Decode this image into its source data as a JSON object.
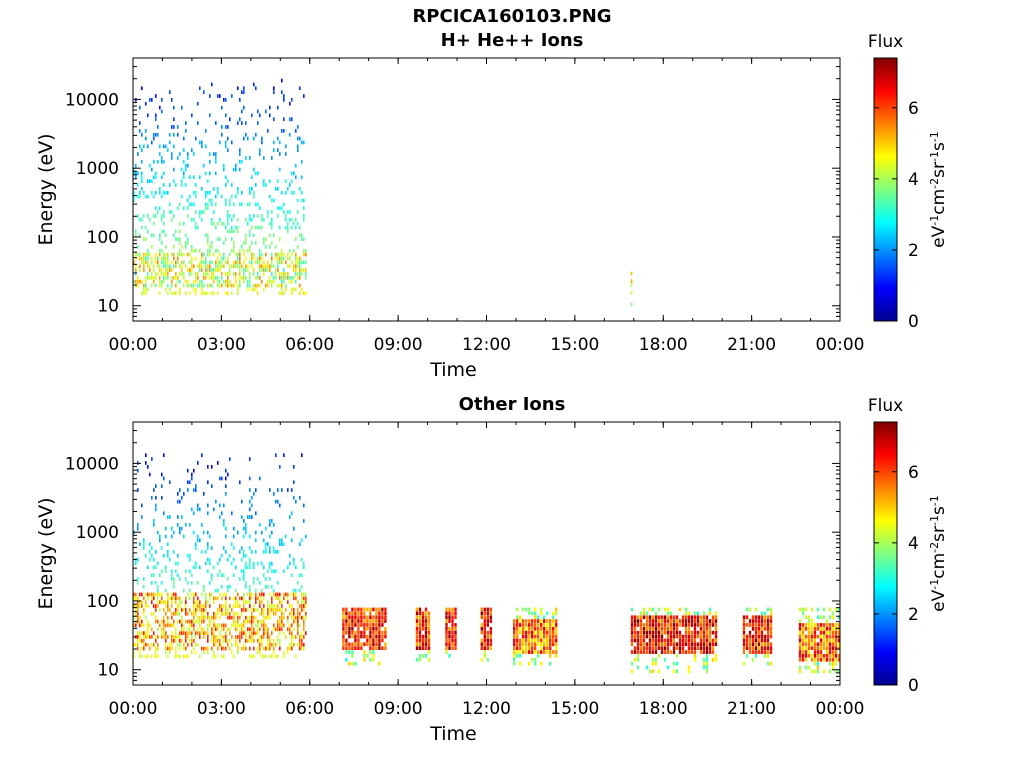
{
  "figure_title": "RPCICA160103.PNG",
  "chart_data": [
    {
      "type": "heatmap",
      "title": "H+ He++ Ions",
      "xlabel": "Time",
      "ylabel": "Energy (eV)",
      "x_ticks": [
        "00:00",
        "03:00",
        "06:00",
        "09:00",
        "12:00",
        "15:00",
        "18:00",
        "21:00",
        "00:00"
      ],
      "x_range_hours": [
        0,
        24
      ],
      "y_scale": "log",
      "y_ticks": [
        10,
        100,
        1000,
        10000
      ],
      "y_tick_labels": [
        "10",
        "100",
        "1000",
        "10000"
      ],
      "ylim": [
        6,
        40000
      ],
      "colorbar": {
        "label": "Flux",
        "units": "eV-1cm-2sr-1s-1",
        "ticks": [
          0,
          2,
          4,
          6
        ],
        "range": [
          0,
          7.4
        ]
      },
      "data_blocks": [
        {
          "t_start_hours": 0.0,
          "t_end_hours": 5.9,
          "e_min_eV": 15,
          "e_max_eV": 20000,
          "core_e_min_eV": 20,
          "core_e_max_eV": 60,
          "core_level": 4.3,
          "pattern": "sparse_streaks"
        },
        {
          "t_start_hours": 16.9,
          "t_end_hours": 16.95,
          "e_min_eV": 8,
          "e_max_eV": 60,
          "core_e_min_eV": 15,
          "core_e_max_eV": 40,
          "core_level": 4.0,
          "pattern": "single_streak"
        }
      ]
    },
    {
      "type": "heatmap",
      "title": "Other Ions",
      "xlabel": "Time",
      "ylabel": "Energy (eV)",
      "x_ticks": [
        "00:00",
        "03:00",
        "06:00",
        "09:00",
        "12:00",
        "15:00",
        "18:00",
        "21:00",
        "00:00"
      ],
      "x_range_hours": [
        0,
        24
      ],
      "y_scale": "log",
      "y_ticks": [
        10,
        100,
        1000,
        10000
      ],
      "y_tick_labels": [
        "10",
        "100",
        "1000",
        "10000"
      ],
      "ylim": [
        6,
        40000
      ],
      "colorbar": {
        "label": "Flux",
        "units": "eV-1cm-2sr-1s-1",
        "ticks": [
          0,
          2,
          4,
          6
        ],
        "range": [
          0,
          7.4
        ]
      },
      "data_blocks": [
        {
          "t_start_hours": 0.0,
          "t_end_hours": 5.9,
          "e_min_eV": 15,
          "e_max_eV": 14000,
          "core_e_min_eV": 20,
          "core_e_max_eV": 150,
          "core_level": 5.2,
          "pattern": "sparse_streaks"
        },
        {
          "t_start_hours": 7.1,
          "t_end_hours": 8.6,
          "e_min_eV": 12,
          "e_max_eV": 80,
          "core_e_min_eV": 20,
          "core_e_max_eV": 80,
          "core_level": 6.2,
          "pattern": "dense_block"
        },
        {
          "t_start_hours": 9.6,
          "t_end_hours": 10.1,
          "e_min_eV": 14,
          "e_max_eV": 80,
          "core_e_min_eV": 20,
          "core_e_max_eV": 80,
          "core_level": 6.2,
          "pattern": "dense_block"
        },
        {
          "t_start_hours": 10.6,
          "t_end_hours": 11.0,
          "e_min_eV": 15,
          "e_max_eV": 80,
          "core_e_min_eV": 20,
          "core_e_max_eV": 80,
          "core_level": 6.4,
          "pattern": "dense_block"
        },
        {
          "t_start_hours": 11.8,
          "t_end_hours": 12.2,
          "e_min_eV": 14,
          "e_max_eV": 80,
          "core_e_min_eV": 20,
          "core_e_max_eV": 80,
          "core_level": 6.2,
          "pattern": "dense_block"
        },
        {
          "t_start_hours": 12.9,
          "t_end_hours": 14.4,
          "e_min_eV": 12,
          "e_max_eV": 80,
          "core_e_min_eV": 18,
          "core_e_max_eV": 60,
          "core_level": 5.6,
          "pattern": "dense_block"
        },
        {
          "t_start_hours": 16.9,
          "t_end_hours": 19.8,
          "e_min_eV": 10,
          "e_max_eV": 80,
          "core_e_min_eV": 18,
          "core_e_max_eV": 70,
          "core_level": 6.4,
          "pattern": "dense_block"
        },
        {
          "t_start_hours": 20.7,
          "t_end_hours": 21.7,
          "e_min_eV": 12,
          "e_max_eV": 80,
          "core_e_min_eV": 18,
          "core_e_max_eV": 70,
          "core_level": 6.2,
          "pattern": "dense_block"
        },
        {
          "t_start_hours": 22.6,
          "t_end_hours": 23.95,
          "e_min_eV": 10,
          "e_max_eV": 80,
          "core_e_min_eV": 14,
          "core_e_max_eV": 50,
          "core_level": 5.8,
          "pattern": "dense_block"
        }
      ]
    }
  ]
}
